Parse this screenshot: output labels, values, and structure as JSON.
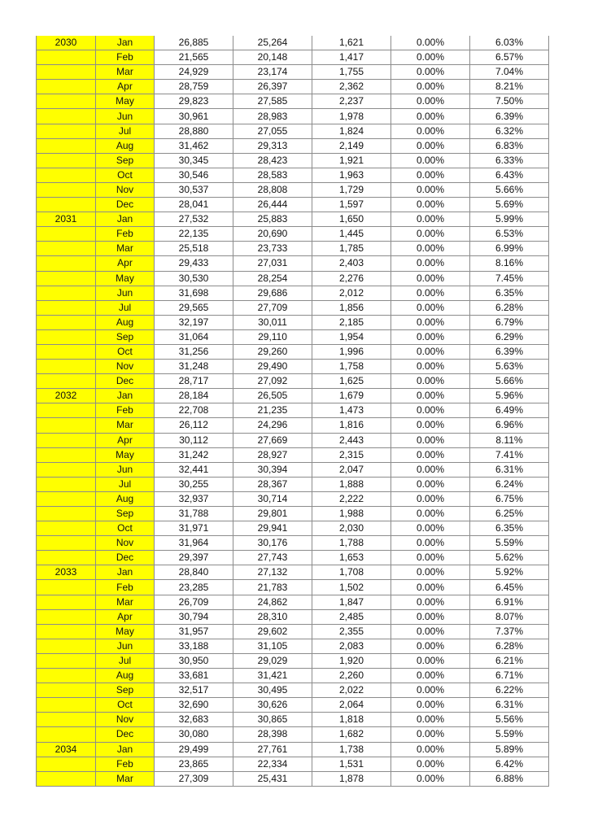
{
  "table": {
    "rows": [
      [
        "2030",
        "Jan",
        "26,885",
        "25,264",
        "1,621",
        "0.00%",
        "6.03%"
      ],
      [
        "",
        "Feb",
        "21,565",
        "20,148",
        "1,417",
        "0.00%",
        "6.57%"
      ],
      [
        "",
        "Mar",
        "24,929",
        "23,174",
        "1,755",
        "0.00%",
        "7.04%"
      ],
      [
        "",
        "Apr",
        "28,759",
        "26,397",
        "2,362",
        "0.00%",
        "8.21%"
      ],
      [
        "",
        "May",
        "29,823",
        "27,585",
        "2,237",
        "0.00%",
        "7.50%"
      ],
      [
        "",
        "Jun",
        "30,961",
        "28,983",
        "1,978",
        "0.00%",
        "6.39%"
      ],
      [
        "",
        "Jul",
        "28,880",
        "27,055",
        "1,824",
        "0.00%",
        "6.32%"
      ],
      [
        "",
        "Aug",
        "31,462",
        "29,313",
        "2,149",
        "0.00%",
        "6.83%"
      ],
      [
        "",
        "Sep",
        "30,345",
        "28,423",
        "1,921",
        "0.00%",
        "6.33%"
      ],
      [
        "",
        "Oct",
        "30,546",
        "28,583",
        "1,963",
        "0.00%",
        "6.43%"
      ],
      [
        "",
        "Nov",
        "30,537",
        "28,808",
        "1,729",
        "0.00%",
        "5.66%"
      ],
      [
        "",
        "Dec",
        "28,041",
        "26,444",
        "1,597",
        "0.00%",
        "5.69%"
      ],
      [
        "2031",
        "Jan",
        "27,532",
        "25,883",
        "1,650",
        "0.00%",
        "5.99%"
      ],
      [
        "",
        "Feb",
        "22,135",
        "20,690",
        "1,445",
        "0.00%",
        "6.53%"
      ],
      [
        "",
        "Mar",
        "25,518",
        "23,733",
        "1,785",
        "0.00%",
        "6.99%"
      ],
      [
        "",
        "Apr",
        "29,433",
        "27,031",
        "2,403",
        "0.00%",
        "8.16%"
      ],
      [
        "",
        "May",
        "30,530",
        "28,254",
        "2,276",
        "0.00%",
        "7.45%"
      ],
      [
        "",
        "Jun",
        "31,698",
        "29,686",
        "2,012",
        "0.00%",
        "6.35%"
      ],
      [
        "",
        "Jul",
        "29,565",
        "27,709",
        "1,856",
        "0.00%",
        "6.28%"
      ],
      [
        "",
        "Aug",
        "32,197",
        "30,011",
        "2,185",
        "0.00%",
        "6.79%"
      ],
      [
        "",
        "Sep",
        "31,064",
        "29,110",
        "1,954",
        "0.00%",
        "6.29%"
      ],
      [
        "",
        "Oct",
        "31,256",
        "29,260",
        "1,996",
        "0.00%",
        "6.39%"
      ],
      [
        "",
        "Nov",
        "31,248",
        "29,490",
        "1,758",
        "0.00%",
        "5.63%"
      ],
      [
        "",
        "Dec",
        "28,717",
        "27,092",
        "1,625",
        "0.00%",
        "5.66%"
      ],
      [
        "2032",
        "Jan",
        "28,184",
        "26,505",
        "1,679",
        "0.00%",
        "5.96%"
      ],
      [
        "",
        "Feb",
        "22,708",
        "21,235",
        "1,473",
        "0.00%",
        "6.49%"
      ],
      [
        "",
        "Mar",
        "26,112",
        "24,296",
        "1,816",
        "0.00%",
        "6.96%"
      ],
      [
        "",
        "Apr",
        "30,112",
        "27,669",
        "2,443",
        "0.00%",
        "8.11%"
      ],
      [
        "",
        "May",
        "31,242",
        "28,927",
        "2,315",
        "0.00%",
        "7.41%"
      ],
      [
        "",
        "Jun",
        "32,441",
        "30,394",
        "2,047",
        "0.00%",
        "6.31%"
      ],
      [
        "",
        "Jul",
        "30,255",
        "28,367",
        "1,888",
        "0.00%",
        "6.24%"
      ],
      [
        "",
        "Aug",
        "32,937",
        "30,714",
        "2,222",
        "0.00%",
        "6.75%"
      ],
      [
        "",
        "Sep",
        "31,788",
        "29,801",
        "1,988",
        "0.00%",
        "6.25%"
      ],
      [
        "",
        "Oct",
        "31,971",
        "29,941",
        "2,030",
        "0.00%",
        "6.35%"
      ],
      [
        "",
        "Nov",
        "31,964",
        "30,176",
        "1,788",
        "0.00%",
        "5.59%"
      ],
      [
        "",
        "Dec",
        "29,397",
        "27,743",
        "1,653",
        "0.00%",
        "5.62%"
      ],
      [
        "2033",
        "Jan",
        "28,840",
        "27,132",
        "1,708",
        "0.00%",
        "5.92%"
      ],
      [
        "",
        "Feb",
        "23,285",
        "21,783",
        "1,502",
        "0.00%",
        "6.45%"
      ],
      [
        "",
        "Mar",
        "26,709",
        "24,862",
        "1,847",
        "0.00%",
        "6.91%"
      ],
      [
        "",
        "Apr",
        "30,794",
        "28,310",
        "2,485",
        "0.00%",
        "8.07%"
      ],
      [
        "",
        "May",
        "31,957",
        "29,602",
        "2,355",
        "0.00%",
        "7.37%"
      ],
      [
        "",
        "Jun",
        "33,188",
        "31,105",
        "2,083",
        "0.00%",
        "6.28%"
      ],
      [
        "",
        "Jul",
        "30,950",
        "29,029",
        "1,920",
        "0.00%",
        "6.21%"
      ],
      [
        "",
        "Aug",
        "33,681",
        "31,421",
        "2,260",
        "0.00%",
        "6.71%"
      ],
      [
        "",
        "Sep",
        "32,517",
        "30,495",
        "2,022",
        "0.00%",
        "6.22%"
      ],
      [
        "",
        "Oct",
        "32,690",
        "30,626",
        "2,064",
        "0.00%",
        "6.31%"
      ],
      [
        "",
        "Nov",
        "32,683",
        "30,865",
        "1,818",
        "0.00%",
        "5.56%"
      ],
      [
        "",
        "Dec",
        "30,080",
        "28,398",
        "1,682",
        "0.00%",
        "5.59%"
      ],
      [
        "2034",
        "Jan",
        "29,499",
        "27,761",
        "1,738",
        "0.00%",
        "5.89%"
      ],
      [
        "",
        "Feb",
        "23,865",
        "22,334",
        "1,531",
        "0.00%",
        "6.42%"
      ],
      [
        "",
        "Mar",
        "27,309",
        "25,431",
        "1,878",
        "0.00%",
        "6.88%"
      ]
    ],
    "highlight_color": "#ffff00"
  }
}
